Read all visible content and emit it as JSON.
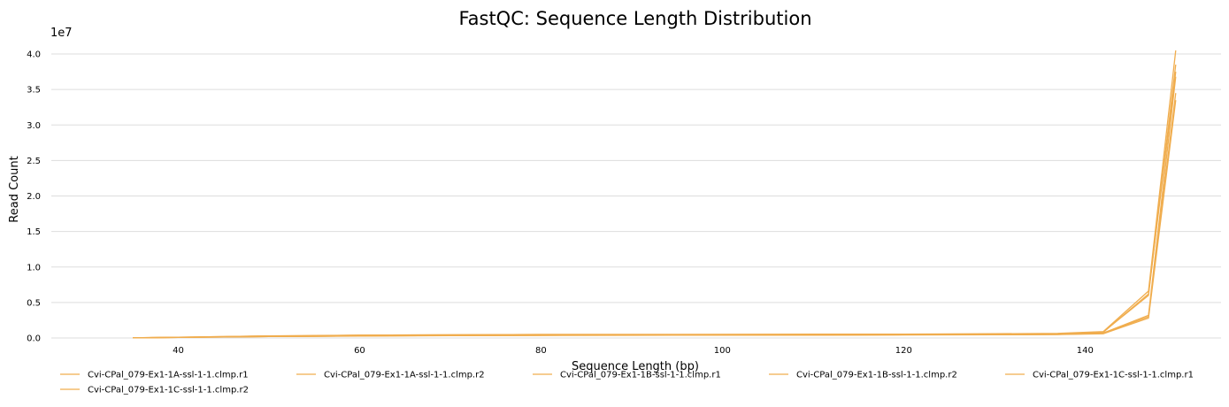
{
  "chart_data": {
    "type": "line",
    "title": "FastQC: Sequence Length Distribution",
    "xlabel": "Sequence Length (bp)",
    "ylabel": "Read Count",
    "y_offset_label": "1e7",
    "xlim": [
      26,
      155
    ],
    "ylim": [
      0,
      4.2
    ],
    "x_ticks": [
      "40",
      "60",
      "80",
      "100",
      "120",
      "140"
    ],
    "y_ticks": [
      "0.0",
      "0.5",
      "1.0",
      "1.5",
      "2.0",
      "2.5",
      "3.0",
      "3.5",
      "4.0"
    ],
    "grid": true,
    "legend_position": "bottom",
    "series_color": "#f0ad4e",
    "x": [
      35,
      40,
      45,
      50,
      55,
      60,
      70,
      80,
      90,
      100,
      110,
      120,
      130,
      137,
      142,
      147,
      150
    ],
    "series": [
      {
        "name": "Cvi-CPal_079-Ex1-1A-ssl-1-1.clmp.r1",
        "values": [
          0.003,
          0.01,
          0.02,
          0.03,
          0.03,
          0.04,
          0.045,
          0.05,
          0.05,
          0.05,
          0.05,
          0.055,
          0.055,
          0.06,
          0.08,
          0.62,
          3.75
        ]
      },
      {
        "name": "Cvi-CPal_079-Ex1-1A-ssl-1-1.clmp.r2",
        "values": [
          0.002,
          0.008,
          0.015,
          0.02,
          0.025,
          0.03,
          0.035,
          0.04,
          0.04,
          0.04,
          0.04,
          0.045,
          0.045,
          0.05,
          0.065,
          0.3,
          3.45
        ]
      },
      {
        "name": "Cvi-CPal_079-Ex1-1B-ssl-1-1.clmp.r1",
        "values": [
          0.003,
          0.01,
          0.02,
          0.03,
          0.035,
          0.04,
          0.045,
          0.05,
          0.05,
          0.05,
          0.055,
          0.055,
          0.06,
          0.065,
          0.09,
          0.66,
          4.05
        ]
      },
      {
        "name": "Cvi-CPal_079-Ex1-1B-ssl-1-1.clmp.r2",
        "values": [
          0.002,
          0.008,
          0.015,
          0.02,
          0.025,
          0.03,
          0.035,
          0.04,
          0.04,
          0.045,
          0.045,
          0.045,
          0.05,
          0.05,
          0.07,
          0.32,
          3.68
        ]
      },
      {
        "name": "Cvi-CPal_079-Ex1-1C-ssl-1-1.clmp.r1",
        "values": [
          0.003,
          0.009,
          0.018,
          0.028,
          0.03,
          0.035,
          0.04,
          0.045,
          0.045,
          0.05,
          0.05,
          0.05,
          0.055,
          0.06,
          0.085,
          0.6,
          3.85
        ]
      },
      {
        "name": "Cvi-CPal_079-Ex1-1C-ssl-1-1.clmp.r2",
        "values": [
          0.002,
          0.007,
          0.014,
          0.02,
          0.022,
          0.028,
          0.032,
          0.035,
          0.038,
          0.04,
          0.04,
          0.042,
          0.045,
          0.048,
          0.06,
          0.28,
          3.35
        ]
      }
    ]
  }
}
